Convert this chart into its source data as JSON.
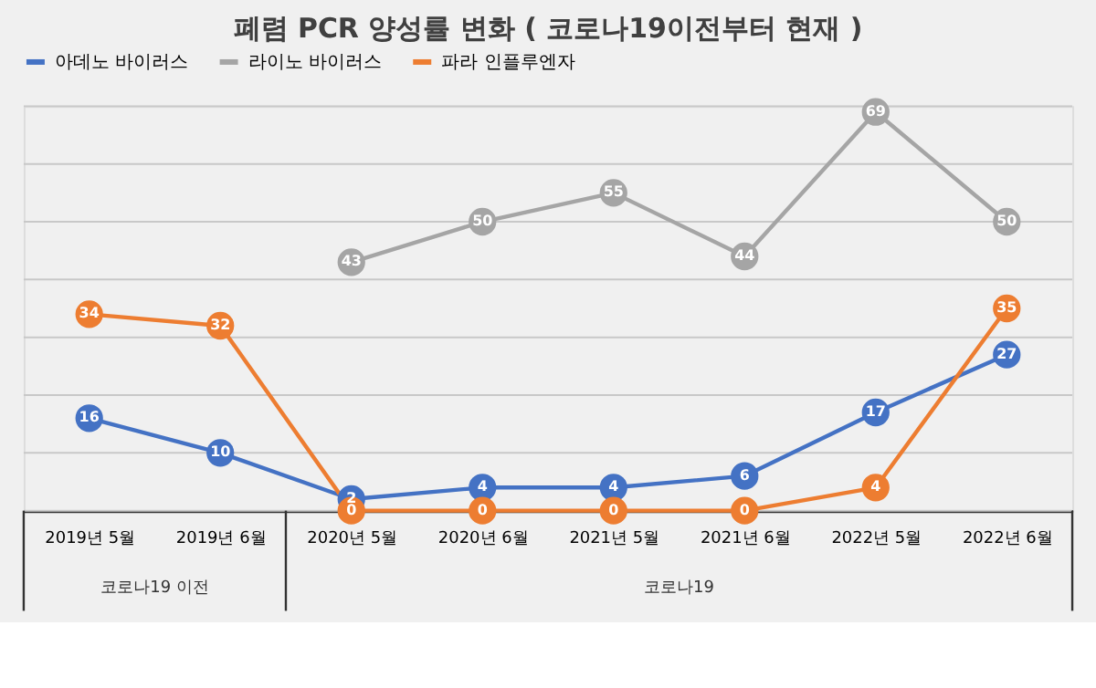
{
  "chart_data": {
    "type": "line",
    "title": "폐렴 PCR 양성률 변화 ( 코로나19이전부터 현재 )",
    "categories": [
      "2019년 5월",
      "2019년 6월",
      "2020년 5월",
      "2020년 6월",
      "2021년 5월",
      "2021년 6월",
      "2022년 5월",
      "2022년 6월"
    ],
    "series": [
      {
        "name": "아데노 바이러스",
        "color": "#4472c4",
        "values": [
          16,
          10,
          2,
          4,
          4,
          6,
          17,
          27
        ]
      },
      {
        "name": "라이노 바이러스",
        "color": "#a5a5a5",
        "values": [
          null,
          null,
          43,
          50,
          55,
          44,
          69,
          50
        ]
      },
      {
        "name": "파라 인플루엔자",
        "color": "#ed7d31",
        "values": [
          34,
          32,
          0,
          0,
          0,
          0,
          4,
          35
        ]
      }
    ],
    "ylim": [
      0,
      70
    ],
    "yticks": [
      {
        "value": 0,
        "label": null
      },
      {
        "value": 10,
        "label": null
      },
      {
        "value": 20,
        "label": null
      },
      {
        "value": 30,
        "label": null
      },
      {
        "value": 40,
        "label": null
      },
      {
        "value": 50,
        "label": null
      },
      {
        "value": 60,
        "label": null
      },
      {
        "value": 70,
        "label": null
      }
    ],
    "grid": "y",
    "legend": "top",
    "marker": "circle",
    "data_labels": true,
    "tick_labels": "x",
    "annotations": [
      "코로나19 이전",
      "코로나19"
    ]
  }
}
